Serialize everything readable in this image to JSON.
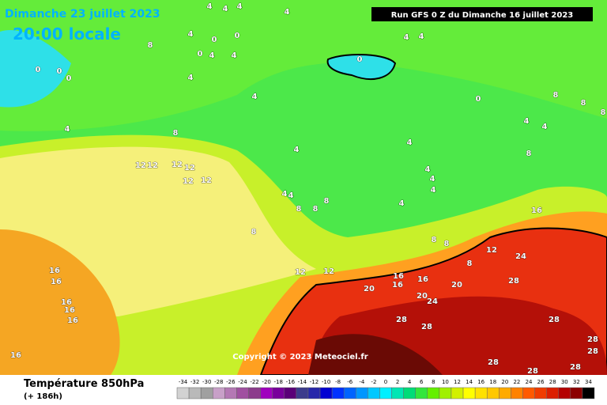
{
  "header": {
    "title": "Dimanche 23 juillet 2023",
    "subtitle": "20:00 locale",
    "run": "Run GFS 0 Z du Dimanche 16 juillet 2023"
  },
  "copyright": "Copyright © 2023 Meteociel.fr",
  "footer": {
    "title": "Température 850hPa",
    "lead": "(+ 186h)"
  },
  "legend": {
    "values": [
      -34,
      -32,
      -30,
      -28,
      -26,
      -24,
      -22,
      -20,
      -18,
      -16,
      -14,
      -12,
      -10,
      -8,
      -6,
      -4,
      -2,
      0,
      2,
      4,
      6,
      8,
      10,
      12,
      14,
      16,
      18,
      20,
      22,
      24,
      26,
      28,
      30,
      32,
      34
    ],
    "colors": [
      "#d2d2d2",
      "#b9b9b9",
      "#a0a0a0",
      "#c8a0c8",
      "#b478b4",
      "#a050a0",
      "#8c3c8c",
      "#a000be",
      "#78009b",
      "#5a0078",
      "#3c3c8c",
      "#2828aa",
      "#0000d2",
      "#0032ff",
      "#0064ff",
      "#0096ff",
      "#00c8ff",
      "#00f0ff",
      "#00e6b4",
      "#00dc78",
      "#32e63c",
      "#64f000",
      "#a0f000",
      "#d2f000",
      "#ffff00",
      "#ffe100",
      "#ffc800",
      "#ffaa00",
      "#ff8200",
      "#ff5a00",
      "#f03c00",
      "#dc1e00",
      "#b40000",
      "#8c0000",
      "#000000"
    ]
  },
  "map_labels": [
    "4",
    "4",
    "4",
    "4",
    "4",
    "0",
    "0",
    "4",
    "0",
    "4",
    "4",
    "4",
    "4",
    "0",
    "8",
    "0",
    "0",
    "0",
    "4",
    "4",
    "4",
    "0",
    "8",
    "8",
    "8",
    "4",
    "4",
    "4",
    "4",
    "4",
    "4",
    "8",
    "8",
    "12",
    "12",
    "12",
    "12",
    "12",
    "12",
    "4",
    "4",
    "8",
    "8",
    "8",
    "4",
    "16",
    "8",
    "8",
    "8",
    "8",
    "12",
    "24",
    "12",
    "12",
    "16",
    "16",
    "16",
    "20",
    "20",
    "20",
    "24",
    "28",
    "28",
    "28",
    "28",
    "16",
    "16",
    "16",
    "16",
    "16",
    "16",
    "28",
    "28",
    "28",
    "28",
    "28"
  ]
}
